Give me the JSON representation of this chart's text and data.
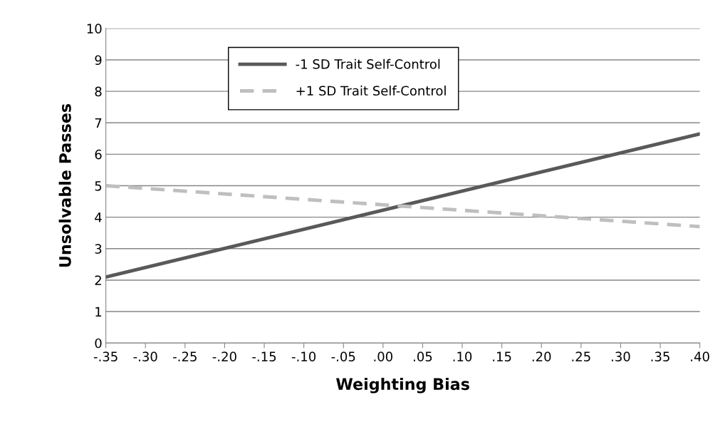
{
  "chart_data": {
    "type": "line",
    "xlabel": "Weighting Bias",
    "ylabel": "Unsolvable Passes",
    "x": [
      -0.35,
      0.4
    ],
    "series": [
      {
        "name": "-1 SD Trait Self-Control",
        "color": "#595959",
        "values": [
          2.1,
          6.65
        ],
        "line_style": "solid"
      },
      {
        "name": "+1 SD Trait Self-Control",
        "color": "#bfbfbf",
        "values": [
          5.0,
          3.7
        ],
        "line_style": "dashed"
      }
    ],
    "xlim": [
      -0.35,
      0.4
    ],
    "ylim": [
      0,
      10
    ],
    "xticks": [
      {
        "value": -0.35,
        "label": "-.35"
      },
      {
        "value": -0.3,
        "label": "-.30"
      },
      {
        "value": -0.25,
        "label": "-.25"
      },
      {
        "value": -0.2,
        "label": "-.20"
      },
      {
        "value": -0.15,
        "label": "-.15"
      },
      {
        "value": -0.1,
        "label": "-.10"
      },
      {
        "value": -0.05,
        "label": "-.05"
      },
      {
        "value": 0.0,
        "label": ".00"
      },
      {
        "value": 0.05,
        "label": ".05"
      },
      {
        "value": 0.1,
        "label": ".10"
      },
      {
        "value": 0.15,
        "label": ".15"
      },
      {
        "value": 0.2,
        "label": ".20"
      },
      {
        "value": 0.25,
        "label": ".25"
      },
      {
        "value": 0.3,
        "label": ".30"
      },
      {
        "value": 0.35,
        "label": ".35"
      },
      {
        "value": 0.4,
        "label": ".40"
      }
    ],
    "yticks": [
      0,
      1,
      2,
      3,
      4,
      5,
      6,
      7,
      8,
      9,
      10
    ],
    "grid": "y",
    "legend": "top",
    "marker": "none"
  }
}
